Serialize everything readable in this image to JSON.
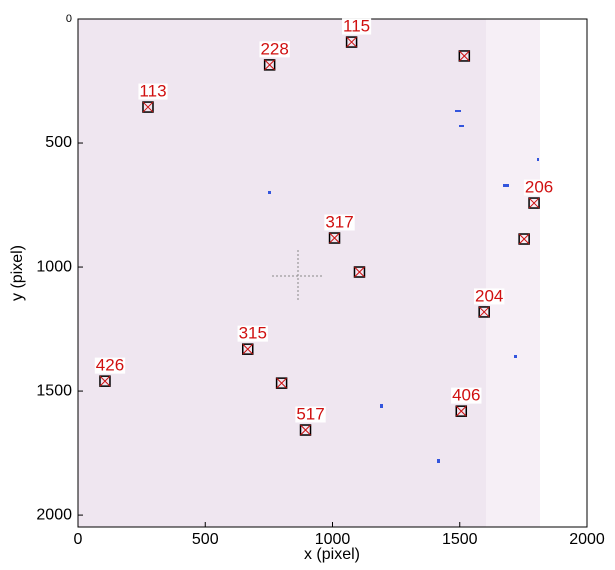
{
  "chart_data": {
    "type": "scatter",
    "x_label": "x (pixel)",
    "y_label": "y (pixel)",
    "x": [
      1075,
      1518,
      753,
      275,
      1792,
      1753,
      1008,
      1106,
      1596,
      667,
      106,
      800,
      1506,
      894
    ],
    "y": [
      93,
      149,
      185,
      355,
      742,
      887,
      883,
      1020,
      1181,
      1331,
      1460,
      1468,
      1581,
      1657
    ],
    "labels": [
      "115",
      null,
      "228",
      "113",
      "206",
      null,
      "317",
      null,
      "204",
      "315",
      "426",
      null,
      "406",
      "517"
    ],
    "xlim": [
      0,
      2000
    ],
    "ylim": [
      0,
      2048
    ],
    "y_inverted": true,
    "xticks": [
      0,
      500,
      1000,
      1500,
      2000
    ],
    "yticks": [
      0,
      500,
      1000,
      1500,
      2000
    ],
    "marker_color": "#cc1010",
    "label_color": "#d01010"
  }
}
